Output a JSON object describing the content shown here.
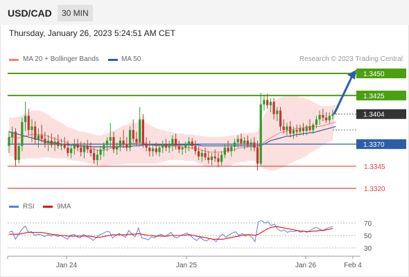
{
  "header": {
    "pair": "USD/CAD",
    "timeframe": "30 MIN"
  },
  "datetime": "Thursday, January 26, 2023 5:24:51 AM CET",
  "legend": {
    "ma20": {
      "label": "MA 20 + Bollinger Bands",
      "color": "#f08080"
    },
    "ma50": {
      "label": "MA 50",
      "color": "#2c5ea8"
    },
    "rsi": {
      "label": "RSI",
      "color": "#5b7fd6"
    },
    "ma9": {
      "label": "9MA",
      "color": "#e01010"
    }
  },
  "copyright": "Research © 2023 Trading Central",
  "chart_data": [
    {
      "type": "candlestick",
      "ylim": [
        1.3305,
        1.346
      ],
      "levels": [
        {
          "label": "1.3450",
          "value": 1.345,
          "kind": "resistance",
          "color": "#4aa00e"
        },
        {
          "label": "1.3425",
          "value": 1.3425,
          "kind": "resistance",
          "color": "#4aa00e"
        },
        {
          "label": "1.3404",
          "value": 1.3404,
          "kind": "last-price",
          "color": "#333333"
        },
        {
          "label": "1.3370",
          "value": 1.337,
          "kind": "pivot",
          "color": "#2c5ea8"
        },
        {
          "label": "1.3345",
          "value": 1.3345,
          "kind": "support",
          "color": "#e04040"
        },
        {
          "label": "1.3320",
          "value": 1.332,
          "kind": "support",
          "color": "#e04040"
        }
      ],
      "xticks": [
        "Jan 24",
        "Jan 25",
        "Jan 26",
        "Feb 4"
      ],
      "ohlc": [
        [
          1.3368,
          1.3385,
          1.336,
          1.3378
        ],
        [
          1.3378,
          1.339,
          1.337,
          1.3384
        ],
        [
          1.3384,
          1.3388,
          1.3345,
          1.3352
        ],
        [
          1.3352,
          1.3372,
          1.3348,
          1.3368
        ],
        [
          1.3368,
          1.34,
          1.3362,
          1.3395
        ],
        [
          1.3395,
          1.3418,
          1.3385,
          1.3402
        ],
        [
          1.3402,
          1.341,
          1.338,
          1.3386
        ],
        [
          1.3386,
          1.3398,
          1.3372,
          1.339
        ],
        [
          1.339,
          1.3396,
          1.337,
          1.3375
        ],
        [
          1.3375,
          1.3388,
          1.3366,
          1.338
        ],
        [
          1.338,
          1.3392,
          1.3372,
          1.3376
        ],
        [
          1.3376,
          1.3384,
          1.3366,
          1.3371
        ],
        [
          1.3371,
          1.338,
          1.3362,
          1.3374
        ],
        [
          1.3374,
          1.3382,
          1.3366,
          1.3369
        ],
        [
          1.3369,
          1.3378,
          1.3362,
          1.3373
        ],
        [
          1.3373,
          1.3381,
          1.3365,
          1.3368
        ],
        [
          1.3368,
          1.3376,
          1.3363,
          1.337
        ],
        [
          1.337,
          1.3378,
          1.3364,
          1.3366
        ],
        [
          1.3366,
          1.3374,
          1.3356,
          1.336
        ],
        [
          1.336,
          1.337,
          1.3354,
          1.3365
        ],
        [
          1.3365,
          1.3376,
          1.3358,
          1.337
        ],
        [
          1.337,
          1.3376,
          1.3362,
          1.3366
        ],
        [
          1.3366,
          1.3373,
          1.3356,
          1.3361
        ],
        [
          1.3361,
          1.3372,
          1.3354,
          1.3368
        ],
        [
          1.3368,
          1.3375,
          1.336,
          1.3364
        ],
        [
          1.3364,
          1.3372,
          1.3356,
          1.336
        ],
        [
          1.336,
          1.3366,
          1.3348,
          1.3352
        ],
        [
          1.3352,
          1.3364,
          1.3346,
          1.3358
        ],
        [
          1.3358,
          1.3368,
          1.3352,
          1.3364
        ],
        [
          1.3364,
          1.3372,
          1.3356,
          1.3369
        ],
        [
          1.3369,
          1.3378,
          1.3362,
          1.3374
        ],
        [
          1.3374,
          1.3394,
          1.3366,
          1.3378
        ],
        [
          1.3378,
          1.3384,
          1.336,
          1.3364
        ],
        [
          1.3364,
          1.3372,
          1.3358,
          1.3368
        ],
        [
          1.3368,
          1.3378,
          1.3362,
          1.3374
        ],
        [
          1.3374,
          1.3386,
          1.3366,
          1.337
        ],
        [
          1.337,
          1.3378,
          1.3362,
          1.3366
        ],
        [
          1.3366,
          1.339,
          1.3362,
          1.3386
        ],
        [
          1.3386,
          1.3398,
          1.3372,
          1.3376
        ],
        [
          1.3376,
          1.3384,
          1.3368,
          1.3372
        ],
        [
          1.3372,
          1.3412,
          1.3368,
          1.3398
        ],
        [
          1.3398,
          1.3404,
          1.3366,
          1.337
        ],
        [
          1.337,
          1.3378,
          1.3362,
          1.3366
        ],
        [
          1.3366,
          1.3374,
          1.3356,
          1.3362
        ],
        [
          1.3362,
          1.337,
          1.3356,
          1.3365
        ],
        [
          1.3365,
          1.3372,
          1.3358,
          1.3361
        ],
        [
          1.3361,
          1.337,
          1.3356,
          1.3366
        ],
        [
          1.3366,
          1.3374,
          1.336,
          1.337
        ],
        [
          1.337,
          1.3376,
          1.3362,
          1.3366
        ],
        [
          1.3366,
          1.3374,
          1.336,
          1.3368
        ],
        [
          1.3368,
          1.338,
          1.3362,
          1.3376
        ],
        [
          1.3376,
          1.3382,
          1.3364,
          1.3368
        ],
        [
          1.3368,
          1.3374,
          1.336,
          1.3364
        ],
        [
          1.3364,
          1.337,
          1.3358,
          1.3366
        ],
        [
          1.3366,
          1.3373,
          1.336,
          1.3369
        ],
        [
          1.3369,
          1.3378,
          1.3362,
          1.3373
        ],
        [
          1.3373,
          1.3377,
          1.3364,
          1.3368
        ],
        [
          1.3368,
          1.3374,
          1.3358,
          1.3362
        ],
        [
          1.3362,
          1.3368,
          1.3352,
          1.3356
        ],
        [
          1.3356,
          1.3364,
          1.335,
          1.336
        ],
        [
          1.336,
          1.3366,
          1.3352,
          1.3355
        ],
        [
          1.3355,
          1.3362,
          1.3348,
          1.3352
        ],
        [
          1.3352,
          1.336,
          1.3346,
          1.3356
        ],
        [
          1.3356,
          1.3364,
          1.335,
          1.3354
        ],
        [
          1.3354,
          1.336,
          1.3344,
          1.335
        ],
        [
          1.335,
          1.3362,
          1.3346,
          1.3358
        ],
        [
          1.3358,
          1.337,
          1.3354,
          1.3366
        ],
        [
          1.3366,
          1.3374,
          1.336,
          1.3362
        ],
        [
          1.3362,
          1.337,
          1.3356,
          1.3367
        ],
        [
          1.3367,
          1.3376,
          1.3362,
          1.3372
        ],
        [
          1.3372,
          1.338,
          1.3366,
          1.3376
        ],
        [
          1.3376,
          1.3382,
          1.3368,
          1.3371
        ],
        [
          1.3371,
          1.3378,
          1.3364,
          1.3374
        ],
        [
          1.3374,
          1.338,
          1.3366,
          1.3369
        ],
        [
          1.3369,
          1.3376,
          1.3362,
          1.3372
        ],
        [
          1.3372,
          1.3378,
          1.3362,
          1.3366
        ],
        [
          1.3366,
          1.3374,
          1.334,
          1.3348
        ],
        [
          1.3348,
          1.3428,
          1.3346,
          1.3415
        ],
        [
          1.3415,
          1.3426,
          1.3408,
          1.342
        ],
        [
          1.342,
          1.3427,
          1.341,
          1.3414
        ],
        [
          1.3414,
          1.3422,
          1.3406,
          1.3418
        ],
        [
          1.3418,
          1.3422,
          1.3398,
          1.3404
        ],
        [
          1.3404,
          1.3412,
          1.3396,
          1.3408
        ],
        [
          1.3408,
          1.3412,
          1.3385,
          1.339
        ],
        [
          1.339,
          1.3398,
          1.3382,
          1.3386
        ],
        [
          1.3386,
          1.3394,
          1.338,
          1.339
        ],
        [
          1.339,
          1.3396,
          1.3378,
          1.3382
        ],
        [
          1.3382,
          1.339,
          1.3376,
          1.3386
        ],
        [
          1.3386,
          1.3392,
          1.3378,
          1.3384
        ],
        [
          1.3384,
          1.3392,
          1.338,
          1.3388
        ],
        [
          1.3388,
          1.3394,
          1.338,
          1.3385
        ],
        [
          1.3385,
          1.3392,
          1.338,
          1.339
        ],
        [
          1.339,
          1.3398,
          1.3384,
          1.3386
        ],
        [
          1.3386,
          1.3394,
          1.3382,
          1.3392
        ],
        [
          1.3392,
          1.3402,
          1.3388,
          1.3398
        ],
        [
          1.3398,
          1.3408,
          1.3392,
          1.3403
        ],
        [
          1.3403,
          1.341,
          1.3396,
          1.34
        ],
        [
          1.34,
          1.3406,
          1.3394,
          1.3397
        ],
        [
          1.3397,
          1.3406,
          1.3393,
          1.3402
        ],
        [
          1.3402,
          1.3409,
          1.3398,
          1.3404
        ]
      ],
      "ma50": [
        1.3384,
        1.3383,
        1.3382,
        1.3381,
        1.338,
        1.3379,
        1.3378,
        1.3377,
        1.3376,
        1.3375,
        1.3374,
        1.3373,
        1.3372,
        1.3372,
        1.3371,
        1.3371,
        1.337,
        1.337,
        1.3369,
        1.3369,
        1.3369,
        1.3368,
        1.3368,
        1.3368,
        1.3368,
        1.3367,
        1.3367,
        1.3367,
        1.3367,
        1.3367,
        1.3367,
        1.3367,
        1.3367,
        1.3367,
        1.3367,
        1.3367,
        1.3367,
        1.3367,
        1.3368,
        1.3368,
        1.3368,
        1.3369,
        1.3369,
        1.3369,
        1.3369,
        1.3369,
        1.3369,
        1.3369,
        1.3369,
        1.3369,
        1.3369,
        1.3369,
        1.3369,
        1.3369,
        1.3369,
        1.3369,
        1.3369,
        1.3369,
        1.3369,
        1.3368,
        1.3368,
        1.3368,
        1.3368,
        1.3368,
        1.3368,
        1.3368,
        1.3368,
        1.3368,
        1.3368,
        1.3368,
        1.3368,
        1.3368,
        1.3368,
        1.3368,
        1.3368,
        1.3368,
        1.3368,
        1.3369,
        1.337,
        1.3372,
        1.3374,
        1.3375,
        1.3376,
        1.3377,
        1.3378,
        1.3379,
        1.3379,
        1.338,
        1.3381,
        1.3381,
        1.3382,
        1.3382,
        1.3383,
        1.3383,
        1.3384,
        1.3385,
        1.3386,
        1.3387,
        1.3388,
        1.3389,
        1.339
      ],
      "ma20": [
        1.3378,
        1.3378,
        1.3377,
        1.3377,
        1.3378,
        1.3379,
        1.338,
        1.3381,
        1.3381,
        1.3381,
        1.3381,
        1.338,
        1.3379,
        1.3377,
        1.3376,
        1.3375,
        1.3374,
        1.3373,
        1.3371,
        1.337,
        1.3369,
        1.3368,
        1.3367,
        1.3367,
        1.3366,
        1.3365,
        1.3364,
        1.3363,
        1.3363,
        1.3363,
        1.3364,
        1.3365,
        1.3366,
        1.3367,
        1.3368,
        1.3369,
        1.337,
        1.3371,
        1.3371,
        1.3371,
        1.3372,
        1.3372,
        1.3371,
        1.337,
        1.3369,
        1.3368,
        1.3368,
        1.3368,
        1.3368,
        1.3368,
        1.3368,
        1.3367,
        1.3367,
        1.3367,
        1.3366,
        1.3366,
        1.3366,
        1.3365,
        1.3364,
        1.3363,
        1.3362,
        1.3361,
        1.3361,
        1.3361,
        1.3361,
        1.3361,
        1.3362,
        1.3362,
        1.3363,
        1.3364,
        1.3365,
        1.3366,
        1.3366,
        1.3367,
        1.3367,
        1.3367,
        1.3366,
        1.3369,
        1.3372,
        1.3375,
        1.3377,
        1.3379,
        1.3381,
        1.3383,
        1.3384,
        1.3385,
        1.3386,
        1.3387,
        1.3388,
        1.3388,
        1.3389,
        1.3389,
        1.339,
        1.339,
        1.339,
        1.339,
        1.3391,
        1.3392,
        1.3393,
        1.3394,
        1.3395
      ],
      "bb_width": [
        0.0022,
        0.0022,
        0.0023,
        0.0024,
        0.0025,
        0.0026,
        0.0026,
        0.0027,
        0.0027,
        0.0027,
        0.0026,
        0.0025,
        0.0024,
        0.0023,
        0.0022,
        0.0021,
        0.002,
        0.0019,
        0.0018,
        0.0018,
        0.0018,
        0.0017,
        0.0017,
        0.0017,
        0.0017,
        0.0017,
        0.0017,
        0.0017,
        0.0017,
        0.0018,
        0.0018,
        0.0019,
        0.0019,
        0.002,
        0.0021,
        0.0022,
        0.0022,
        0.0023,
        0.0023,
        0.0023,
        0.0024,
        0.0024,
        0.0023,
        0.0022,
        0.0021,
        0.002,
        0.0019,
        0.0018,
        0.0017,
        0.0016,
        0.0016,
        0.0015,
        0.0015,
        0.0015,
        0.0015,
        0.0015,
        0.0015,
        0.0015,
        0.0016,
        0.0016,
        0.0017,
        0.0017,
        0.0017,
        0.0017,
        0.0017,
        0.0017,
        0.0017,
        0.0017,
        0.0017,
        0.0016,
        0.0016,
        0.0016,
        0.0016,
        0.0016,
        0.0016,
        0.0016,
        0.0018,
        0.0024,
        0.003,
        0.0034,
        0.0037,
        0.0039,
        0.004,
        0.004,
        0.004,
        0.0039,
        0.0038,
        0.0037,
        0.0036,
        0.0035,
        0.0034,
        0.0032,
        0.003,
        0.0028,
        0.0026,
        0.0024,
        0.0022,
        0.0021,
        0.002,
        0.002,
        0.002
      ]
    },
    {
      "type": "line",
      "series": [
        {
          "name": "RSI",
          "values": [
            55,
            57,
            44,
            52,
            60,
            65,
            55,
            56,
            50,
            52,
            51,
            48,
            51,
            49,
            52,
            48,
            50,
            47,
            44,
            50,
            52,
            48,
            46,
            52,
            48,
            46,
            42,
            47,
            51,
            53,
            56,
            56,
            46,
            50,
            53,
            50,
            47,
            58,
            52,
            48,
            62,
            46,
            45,
            43,
            48,
            46,
            50,
            52,
            48,
            51,
            55,
            48,
            46,
            50,
            52,
            54,
            50,
            45,
            42,
            47,
            43,
            41,
            45,
            44,
            40,
            48,
            52,
            47,
            51,
            54,
            56,
            50,
            53,
            49,
            52,
            47,
            40,
            72,
            74,
            70,
            72,
            66,
            68,
            60,
            57,
            59,
            55,
            57,
            56,
            58,
            55,
            57,
            55,
            58,
            61,
            63,
            60,
            58,
            61,
            63,
            64
          ]
        },
        {
          "name": "9MA",
          "values": [
            52,
            52,
            52,
            52,
            53,
            54,
            55,
            55,
            55,
            55,
            55,
            54,
            53,
            52,
            51,
            51,
            50,
            50,
            49,
            49,
            49,
            49,
            49,
            49,
            49,
            49,
            48,
            47,
            47,
            48,
            49,
            50,
            51,
            51,
            51,
            51,
            51,
            52,
            52,
            52,
            53,
            52,
            51,
            50,
            50,
            49,
            49,
            49,
            49,
            49,
            50,
            50,
            50,
            50,
            50,
            51,
            51,
            50,
            49,
            48,
            47,
            46,
            45,
            44,
            44,
            44,
            44,
            45,
            46,
            47,
            48,
            49,
            50,
            51,
            51,
            51,
            50,
            52,
            55,
            58,
            61,
            63,
            64,
            64,
            63,
            62,
            61,
            60,
            59,
            58,
            57,
            57,
            56,
            56,
            57,
            57,
            58,
            58,
            59,
            60,
            61
          ]
        }
      ],
      "yticks": [
        70,
        50,
        30
      ],
      "ylim": [
        20,
        80
      ],
      "xticks": [
        "Jan 24",
        "Jan 25",
        "Jan 26",
        "Feb 4"
      ]
    }
  ]
}
